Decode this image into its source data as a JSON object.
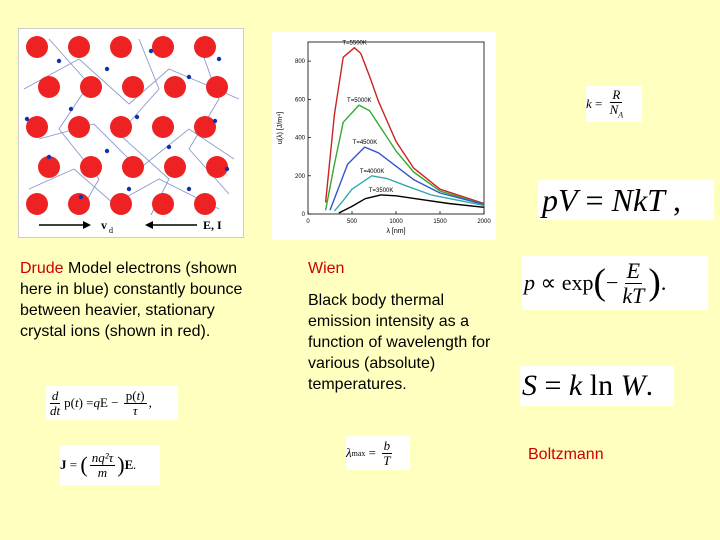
{
  "drude": {
    "title": "Drude",
    "description": "Model electrons (shown here in blue) constantly bounce between heavier, stationary crystal ions (shown in red).",
    "diagram_vd": "v",
    "diagram_vd_sub": "d",
    "diagram_EI": "E, I"
  },
  "wien": {
    "title": "Wien",
    "description": "Black body thermal emission intensity as a function of wavelength for various (absolute) temperatures."
  },
  "boltzmann": {
    "title": "Boltzmann"
  },
  "chart_data": {
    "type": "line",
    "xlabel": "λ [nm]",
    "ylabel": "u(λ) [J/m⁴]",
    "xlim": [
      0,
      2000
    ],
    "ylim": [
      0,
      900
    ],
    "xticks": [
      "0",
      "500",
      "1000",
      "1500",
      "2000"
    ],
    "yticks": [
      "0",
      "200",
      "400",
      "600",
      "800"
    ],
    "series": [
      {
        "name": "T=5500K",
        "color": "#cc2222",
        "x": [
          200,
          300,
          400,
          527,
          600,
          700,
          800,
          1000,
          1200,
          1500,
          2000
        ],
        "values": [
          60,
          520,
          820,
          870,
          840,
          720,
          590,
          380,
          240,
          130,
          55
        ]
      },
      {
        "name": "T=5000K",
        "color": "#33aa33",
        "x": [
          200,
          300,
          400,
          580,
          700,
          800,
          1000,
          1200,
          1500,
          2000
        ],
        "values": [
          20,
          260,
          480,
          570,
          540,
          470,
          330,
          220,
          120,
          50
        ]
      },
      {
        "name": "T=4500K",
        "color": "#3355cc",
        "x": [
          250,
          350,
          450,
          644,
          800,
          1000,
          1200,
          1500,
          2000
        ],
        "values": [
          20,
          140,
          260,
          350,
          320,
          250,
          180,
          110,
          50
        ]
      },
      {
        "name": "T=4000K",
        "color": "#33aaaa",
        "x": [
          300,
          400,
          500,
          725,
          900,
          1100,
          1400,
          2000
        ],
        "values": [
          15,
          70,
          130,
          200,
          185,
          150,
          100,
          45
        ]
      },
      {
        "name": "T=3500K",
        "color": "#000000",
        "x": [
          350,
          500,
          650,
          828,
          1000,
          1300,
          1600,
          2000
        ],
        "values": [
          5,
          40,
          80,
          100,
          95,
          75,
          55,
          35
        ]
      }
    ]
  }
}
